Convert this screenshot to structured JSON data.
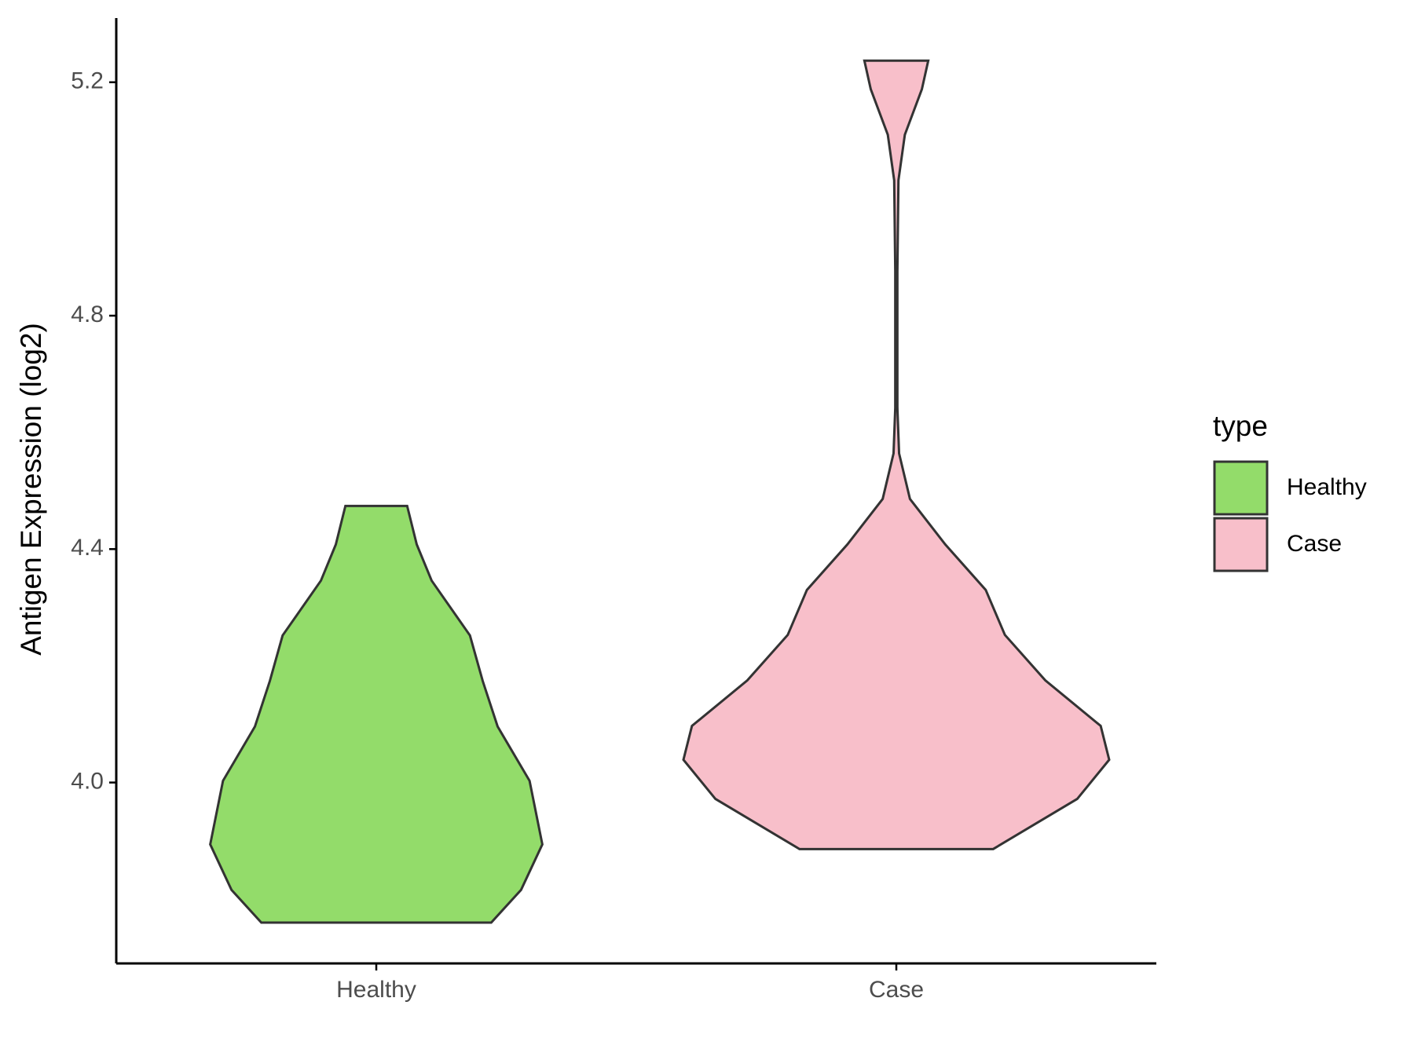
{
  "chart_data": {
    "type": "violin",
    "y_label": "Antigen Expression (log2)",
    "legend_title": "type",
    "legend": "right",
    "ylim": [
      3.69,
      5.31
    ],
    "yticks": [
      {
        "value": 4.0,
        "label": "4.0"
      },
      4.4,
      4.8,
      5.2
    ],
    "series": [
      {
        "name": "Healthy",
        "color": "#93dc6a",
        "y": [
          4.474,
          4.408,
          4.346,
          4.252,
          4.174,
          4.096,
          4.003,
          3.894,
          3.816,
          3.76
        ],
        "density": [
          0.145,
          0.19,
          0.26,
          0.44,
          0.5,
          0.57,
          0.72,
          0.78,
          0.68,
          0.54
        ]
      },
      {
        "name": "Case",
        "color": "#f8bfca",
        "y": [
          5.237,
          5.188,
          5.11,
          5.032,
          4.876,
          4.642,
          4.564,
          4.486,
          4.408,
          4.33,
          4.253,
          4.175,
          4.097,
          4.039,
          3.972,
          3.886
        ],
        "density": [
          0.15,
          0.12,
          0.04,
          0.01,
          0.005,
          0.005,
          0.013,
          0.064,
          0.23,
          0.42,
          0.51,
          0.7,
          0.96,
          1.0,
          0.85,
          0.455
        ]
      }
    ]
  }
}
